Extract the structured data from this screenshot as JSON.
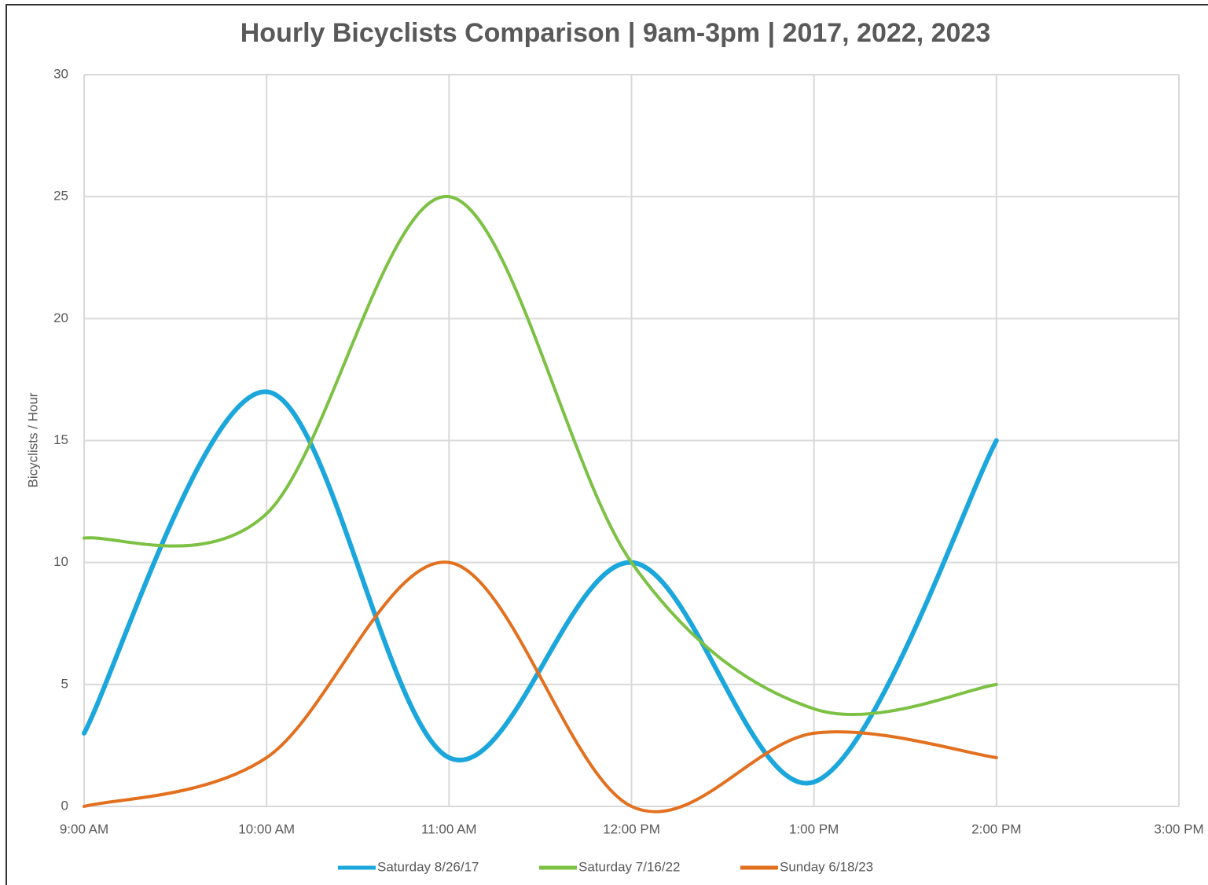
{
  "chart_data": {
    "type": "line",
    "title": "Hourly Bicyclists Comparison | 9am-3pm | 2017, 2022, 2023",
    "y_label": "Bicyclists / Hour",
    "categories": [
      "9:00 AM",
      "10:00 AM",
      "11:00 AM",
      "12:00 PM",
      "1:00 PM",
      "2:00 PM",
      "3:00 PM"
    ],
    "series": [
      {
        "name": "Saturday 8/26/17",
        "color": "#1ba6dc",
        "values": [
          3,
          17,
          2,
          10,
          1,
          15,
          null
        ]
      },
      {
        "name": "Saturday 7/16/22",
        "color": "#7cc143",
        "values": [
          11,
          12,
          25,
          10,
          4,
          5,
          null
        ]
      },
      {
        "name": "Sunday 6/18/23",
        "color": "#e2701f",
        "values": [
          0,
          2,
          10,
          0,
          3,
          2,
          null
        ]
      }
    ],
    "ylim": [
      0,
      30
    ],
    "yticks": [
      0,
      5,
      10,
      15,
      20,
      25,
      30
    ],
    "grid": true,
    "smooth": true,
    "legend": "bottom"
  }
}
